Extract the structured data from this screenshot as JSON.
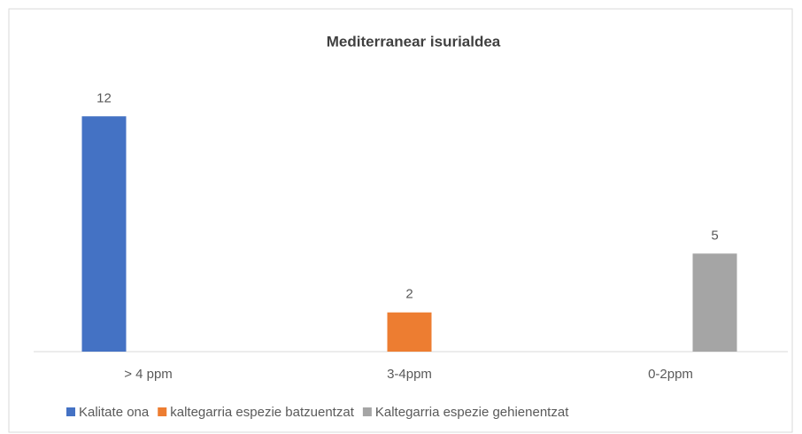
{
  "chart_data": {
    "type": "bar",
    "title": "Mediterranear isurialdea",
    "categories": [
      "> 4 ppm",
      "3-4ppm",
      "0-2ppm"
    ],
    "series": [
      {
        "name": "Kalitate ona",
        "color": "#4472c4",
        "values": [
          12,
          null,
          null
        ]
      },
      {
        "name": "kaltegarria espezie batzuentzat",
        "color": "#ed7d31",
        "values": [
          null,
          2,
          null
        ]
      },
      {
        "name": "Kaltegarria espezie gehienentzat",
        "color": "#a5a5a5",
        "values": [
          null,
          null,
          5
        ]
      }
    ],
    "ylim": [
      0,
      14
    ],
    "grid": false,
    "legend": "bottom",
    "data_labels": true
  }
}
